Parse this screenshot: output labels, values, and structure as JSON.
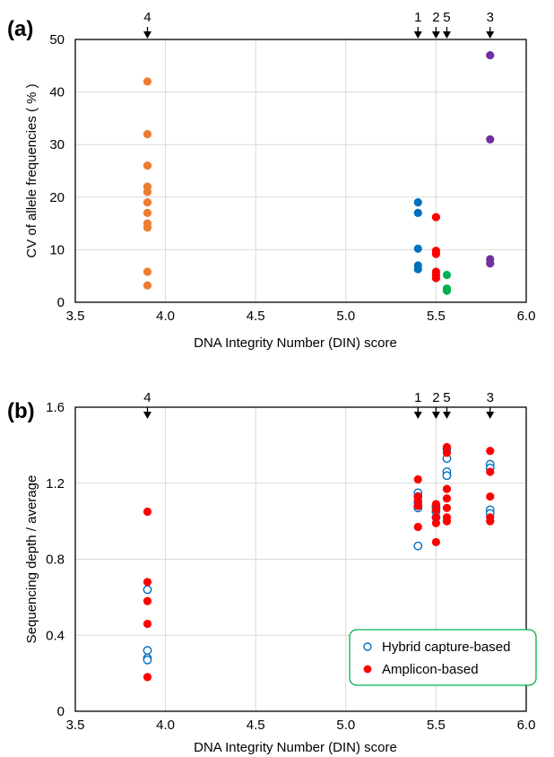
{
  "chart_data": [
    {
      "panel_label": "(a)",
      "type": "scatter",
      "xlabel": "DNA Integrity Number (DIN) score",
      "ylabel": "CV of allele frequencies ( % )",
      "xlim": [
        3.5,
        6.0
      ],
      "ylim": [
        0,
        50
      ],
      "xticks": [
        "3.5",
        "4.0",
        "4.5",
        "5.0",
        "5.5",
        "6.0"
      ],
      "yticks": [
        "0",
        "10",
        "20",
        "30",
        "40",
        "50"
      ],
      "grid": true,
      "sample_markers": [
        {
          "label": "4",
          "x": 3.9
        },
        {
          "label": "1",
          "x": 5.4
        },
        {
          "label": "2",
          "x": 5.5
        },
        {
          "label": "5",
          "x": 5.56
        },
        {
          "label": "3",
          "x": 5.8
        }
      ],
      "series": [
        {
          "color": "#ED7D31",
          "marker": "filled",
          "points": [
            [
              3.9,
              42
            ],
            [
              3.9,
              32
            ],
            [
              3.9,
              26
            ],
            [
              3.9,
              22
            ],
            [
              3.9,
              21
            ],
            [
              3.9,
              19
            ],
            [
              3.9,
              17
            ],
            [
              3.9,
              15
            ],
            [
              3.9,
              14.2
            ],
            [
              3.9,
              5.8
            ],
            [
              3.9,
              3.2
            ]
          ]
        },
        {
          "color": "#0070C0",
          "marker": "filled",
          "points": [
            [
              5.4,
              19
            ],
            [
              5.4,
              17
            ],
            [
              5.4,
              10.2
            ],
            [
              5.4,
              7
            ],
            [
              5.4,
              6.3
            ]
          ]
        },
        {
          "color": "#FF0000",
          "marker": "filled",
          "points": [
            [
              5.5,
              16.2
            ],
            [
              5.5,
              9.8
            ],
            [
              5.5,
              9.2
            ],
            [
              5.5,
              5.8
            ],
            [
              5.5,
              5.2
            ],
            [
              5.5,
              4.6
            ]
          ]
        },
        {
          "color": "#00B050",
          "marker": "filled",
          "points": [
            [
              5.56,
              5.2
            ],
            [
              5.56,
              2.6
            ],
            [
              5.56,
              2.2
            ]
          ]
        },
        {
          "color": "#7030A0",
          "marker": "filled",
          "points": [
            [
              5.8,
              47
            ],
            [
              5.8,
              31
            ],
            [
              5.8,
              8.2
            ],
            [
              5.8,
              7.4
            ]
          ]
        }
      ]
    },
    {
      "panel_label": "(b)",
      "type": "scatter",
      "xlabel": "DNA Integrity Number (DIN) score",
      "ylabel": "Sequencing depth / average",
      "xlim": [
        3.5,
        6.0
      ],
      "ylim": [
        0,
        1.6
      ],
      "xticks": [
        "3.5",
        "4.0",
        "4.5",
        "5.0",
        "5.5",
        "6.0"
      ],
      "yticks": [
        "0",
        "0.4",
        "0.8",
        "1.2",
        "1.6"
      ],
      "grid": true,
      "legend_position": "bottom-right",
      "sample_markers": [
        {
          "label": "4",
          "x": 3.9
        },
        {
          "label": "1",
          "x": 5.4
        },
        {
          "label": "2",
          "x": 5.5
        },
        {
          "label": "5",
          "x": 5.56
        },
        {
          "label": "3",
          "x": 5.8
        }
      ],
      "series": [
        {
          "name": "Hybrid capture-based",
          "color": "#0070C0",
          "marker": "open",
          "points": [
            [
              3.9,
              0.64
            ],
            [
              3.9,
              0.32
            ],
            [
              3.9,
              0.28
            ],
            [
              3.9,
              0.27
            ],
            [
              5.4,
              1.15
            ],
            [
              5.4,
              1.13
            ],
            [
              5.4,
              1.1
            ],
            [
              5.4,
              1.08
            ],
            [
              5.4,
              1.07
            ],
            [
              5.4,
              0.87
            ],
            [
              5.5,
              1.08
            ],
            [
              5.5,
              1.07
            ],
            [
              5.5,
              1.05
            ],
            [
              5.5,
              1.02
            ],
            [
              5.56,
              1.38
            ],
            [
              5.56,
              1.33
            ],
            [
              5.56,
              1.26
            ],
            [
              5.56,
              1.24
            ],
            [
              5.8,
              1.3
            ],
            [
              5.8,
              1.28
            ],
            [
              5.8,
              1.06
            ],
            [
              5.8,
              1.04
            ]
          ]
        },
        {
          "name": "Amplicon-based",
          "color": "#FF0000",
          "marker": "filled",
          "points": [
            [
              3.9,
              1.05
            ],
            [
              3.9,
              0.68
            ],
            [
              3.9,
              0.58
            ],
            [
              3.9,
              0.46
            ],
            [
              3.9,
              0.18
            ],
            [
              5.4,
              1.22
            ],
            [
              5.4,
              1.13
            ],
            [
              5.4,
              1.11
            ],
            [
              5.4,
              1.08
            ],
            [
              5.4,
              0.97
            ],
            [
              5.5,
              1.09
            ],
            [
              5.5,
              1.06
            ],
            [
              5.5,
              1.02
            ],
            [
              5.5,
              0.99
            ],
            [
              5.5,
              0.89
            ],
            [
              5.56,
              1.39
            ],
            [
              5.56,
              1.36
            ],
            [
              5.56,
              1.17
            ],
            [
              5.56,
              1.12
            ],
            [
              5.56,
              1.07
            ],
            [
              5.56,
              1.02
            ],
            [
              5.56,
              1.0
            ],
            [
              5.8,
              1.37
            ],
            [
              5.8,
              1.26
            ],
            [
              5.8,
              1.13
            ],
            [
              5.8,
              1.02
            ],
            [
              5.8,
              1.0
            ]
          ]
        }
      ]
    }
  ]
}
